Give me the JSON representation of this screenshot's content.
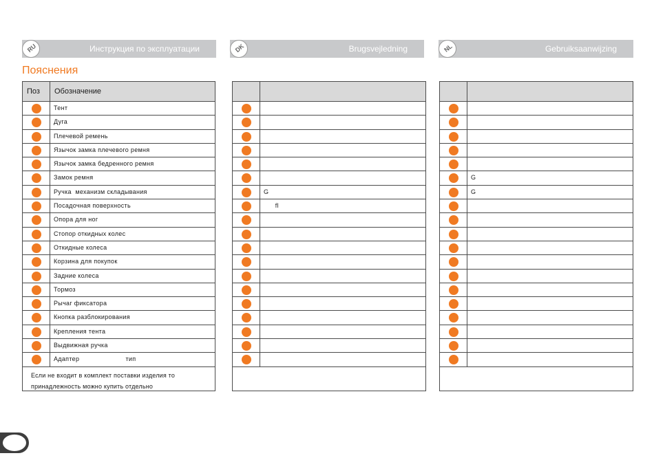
{
  "headers": [
    {
      "lang": "RU",
      "title": "Инструкция по эксплуатации"
    },
    {
      "lang": "DK",
      "title": "Brugsvejledning"
    },
    {
      "lang": "NL",
      "title": "Gebruiksaanwijzing"
    }
  ],
  "section_title": "Пояснения",
  "ru_table": {
    "col_pos": "Поз",
    "col_name": "Обозначение",
    "rows": [
      "Тент",
      "Дуга",
      "Плечевой ремень",
      "Язычок замка плечевого ремня",
      "Язычок замка бедренного ремня",
      "Замок ремня",
      "Ручка  механизм складывания",
      "Посадочная поверхность",
      "Опора для ног",
      "Стопор откидных колес",
      "Откидные колеса",
      "Корзина для покупок",
      "Задние колеса",
      "Тормоз",
      "Рычаг фиксатора",
      "Кнопка разблокирования",
      "Крепления тента",
      "Выдвижная ручка",
      "Адаптер                        тип"
    ],
    "footnote_line1": "Если не входит в комплект поставки изделия  то",
    "footnote_line2": "принадлежность можно купить отдельно"
  },
  "dk_table": {
    "col_pos": "",
    "col_name": "",
    "rows": [
      "",
      "",
      "",
      "",
      "",
      "",
      "G",
      "      fl",
      "",
      "",
      "",
      "",
      "",
      "",
      "",
      "",
      "",
      "",
      ""
    ],
    "footnote_line1": "",
    "footnote_line2": ""
  },
  "nl_table": {
    "col_pos": "",
    "col_name": "",
    "rows": [
      "",
      "",
      "",
      "",
      "",
      "G",
      "G",
      "",
      "",
      "",
      "",
      "",
      "",
      "",
      "",
      "",
      "",
      "",
      ""
    ],
    "footnote_line1": "",
    "footnote_line2": ""
  },
  "colors": {
    "accent": "#f07a22",
    "header_bar": "#c8c9cb",
    "table_head": "#d9d9d9"
  }
}
